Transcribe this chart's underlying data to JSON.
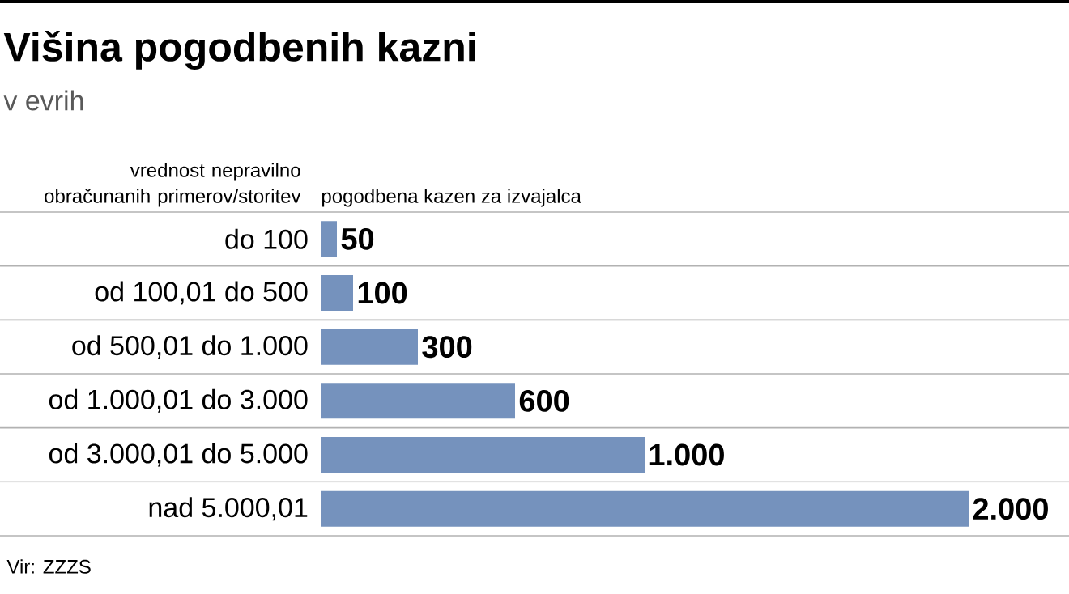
{
  "chart_data": {
    "type": "bar",
    "orientation": "horizontal",
    "title": "Višina pogodbenih kazni",
    "subtitle": "v evrih",
    "ylabel": "vrednost nepravilno obračunanih primerov/storitev",
    "xlabel": "pogodbena kazen za izvajalca",
    "categories": [
      "do 100",
      "od 100,01 do 500",
      "od 500,01 do 1.000",
      "od 1.000,01 do 3.000",
      "od 3.000,01 do 5.000",
      "nad 5.000,01"
    ],
    "values": [
      50,
      100,
      300,
      600,
      1000,
      2000
    ],
    "value_labels": [
      "50",
      "100",
      "300",
      "600",
      "1.000",
      "2.000"
    ],
    "color": "#7592bd",
    "annotations": [
      "Vir: ZZZS"
    ]
  }
}
